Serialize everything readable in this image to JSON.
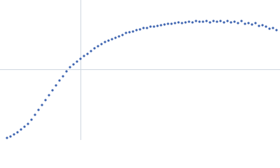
{
  "chart_data": {
    "type": "scatter",
    "color": "#3d64b0",
    "grid": true,
    "xlim": [
      0,
      400
    ],
    "ylim": [
      0,
      200
    ],
    "xticks": [
      115
    ],
    "yticks": [
      100
    ],
    "x": [
      10,
      15,
      20,
      25,
      30,
      35,
      40,
      45,
      50,
      55,
      60,
      65,
      70,
      75,
      80,
      85,
      90,
      95,
      100,
      105,
      110,
      115,
      120,
      125,
      130,
      135,
      140,
      145,
      150,
      155,
      160,
      165,
      170,
      175,
      180,
      185,
      190,
      195,
      200,
      205,
      210,
      215,
      220,
      225,
      230,
      235,
      240,
      245,
      250,
      255,
      260,
      265,
      270,
      275,
      280,
      285,
      290,
      295,
      300,
      305,
      310,
      315,
      320,
      325,
      330,
      335,
      340,
      345,
      350,
      355,
      360,
      365,
      370,
      375,
      380,
      385,
      390,
      395
    ],
    "values": [
      3,
      5,
      8,
      11,
      15,
      19,
      23,
      29,
      36,
      43,
      50,
      57,
      64,
      71,
      78,
      85,
      91,
      98,
      104,
      108,
      112,
      116,
      120,
      123,
      127,
      131,
      134,
      137,
      140,
      142,
      144,
      146,
      148,
      150,
      153,
      154,
      155,
      157,
      158,
      160,
      160,
      162,
      162,
      163,
      164,
      165,
      166,
      166,
      167,
      168,
      167,
      168,
      169,
      168,
      170,
      169,
      169,
      170,
      168,
      170,
      169,
      170,
      168,
      170,
      168,
      169,
      167,
      170,
      166,
      167,
      165,
      167,
      163,
      164,
      162,
      159,
      160,
      157
    ]
  }
}
